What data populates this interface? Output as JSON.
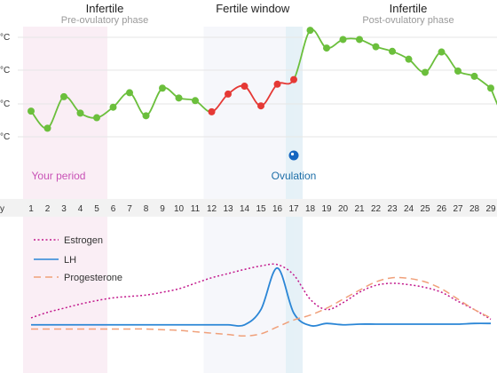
{
  "chart_data": [
    {
      "type": "line",
      "phases": [
        {
          "title": "Infertile",
          "subtitle": "Pre-ovulatory phase",
          "title_color": "#222222"
        },
        {
          "title": "Fertile window",
          "subtitle": "",
          "title_color": "#e53935"
        },
        {
          "title": "Infertile",
          "subtitle": "Post-ovulatory phase",
          "title_color": "#222222"
        }
      ],
      "y_tick_labels": [
        "°C",
        "°C",
        "°C",
        "°C"
      ],
      "x_axis_label": "y",
      "annotations": {
        "period": "Your period",
        "ovulation": "Ovulation"
      },
      "days": [
        1,
        2,
        3,
        4,
        5,
        6,
        7,
        8,
        9,
        10,
        11,
        12,
        13,
        14,
        15,
        16,
        17,
        18,
        19,
        20,
        21,
        22,
        23,
        24,
        25,
        26,
        27,
        28,
        29
      ],
      "temperature_points": [
        {
          "day": 1,
          "level": 0.39,
          "fertile": false
        },
        {
          "day": 2,
          "level": 0.13,
          "fertile": false
        },
        {
          "day": 3,
          "level": 0.61,
          "fertile": false
        },
        {
          "day": 4,
          "level": 0.36,
          "fertile": false
        },
        {
          "day": 5,
          "level": 0.29,
          "fertile": false
        },
        {
          "day": 6,
          "level": 0.45,
          "fertile": false
        },
        {
          "day": 7,
          "level": 0.67,
          "fertile": false
        },
        {
          "day": 8,
          "level": 0.32,
          "fertile": false
        },
        {
          "day": 9,
          "level": 0.74,
          "fertile": false
        },
        {
          "day": 10,
          "level": 0.59,
          "fertile": false
        },
        {
          "day": 11,
          "level": 0.55,
          "fertile": false
        },
        {
          "day": 12,
          "level": 0.38,
          "fertile": true
        },
        {
          "day": 13,
          "level": 0.65,
          "fertile": true
        },
        {
          "day": 14,
          "level": 0.77,
          "fertile": true
        },
        {
          "day": 15,
          "level": 0.47,
          "fertile": true
        },
        {
          "day": 16,
          "level": 0.8,
          "fertile": true
        },
        {
          "day": 17,
          "level": 0.87,
          "fertile": true
        },
        {
          "day": 18,
          "level": 1.62,
          "fertile": false
        },
        {
          "day": 19,
          "level": 1.35,
          "fertile": false
        },
        {
          "day": 20,
          "level": 1.48,
          "fertile": false
        },
        {
          "day": 21,
          "level": 1.48,
          "fertile": false
        },
        {
          "day": 22,
          "level": 1.37,
          "fertile": false
        },
        {
          "day": 23,
          "level": 1.3,
          "fertile": false
        },
        {
          "day": 24,
          "level": 1.18,
          "fertile": false
        },
        {
          "day": 25,
          "level": 0.98,
          "fertile": false
        },
        {
          "day": 26,
          "level": 1.29,
          "fertile": false
        },
        {
          "day": 27,
          "level": 1.0,
          "fertile": false
        },
        {
          "day": 28,
          "level": 0.92,
          "fertile": false
        },
        {
          "day": 29,
          "level": 0.74,
          "fertile": false
        }
      ],
      "period_days": [
        1,
        5
      ],
      "fertile_window_days": [
        12,
        17
      ],
      "ovulation_day": 17,
      "colors": {
        "normal": "#6bbf3c",
        "fertile": "#e53935",
        "period_band": "#f8e8f1",
        "fertile_band": "#eef0f8",
        "ovulation_band": "#e3eff6",
        "ovulation_dot": "#1565c0",
        "period_text": "#c852b6",
        "ovulation_text": "#1e6fa8"
      }
    },
    {
      "type": "line",
      "legend_position": "top-left",
      "series": [
        {
          "name": "Estrogen",
          "color": "#c2188c",
          "style": "dotted",
          "values": [
            0.18,
            0.26,
            0.32,
            0.38,
            0.43,
            0.47,
            0.49,
            0.51,
            0.55,
            0.6,
            0.68,
            0.76,
            0.82,
            0.88,
            0.93,
            0.95,
            0.8,
            0.45,
            0.3,
            0.4,
            0.55,
            0.65,
            0.68,
            0.66,
            0.62,
            0.55,
            0.42,
            0.3,
            0.16
          ]
        },
        {
          "name": "LH",
          "color": "#2b86d6",
          "style": "solid",
          "values": [
            0.08,
            0.08,
            0.08,
            0.08,
            0.08,
            0.08,
            0.08,
            0.08,
            0.08,
            0.08,
            0.08,
            0.08,
            0.08,
            0.08,
            0.3,
            0.9,
            0.25,
            0.07,
            0.1,
            0.08,
            0.09,
            0.09,
            0.09,
            0.09,
            0.09,
            0.09,
            0.09,
            0.1,
            0.1
          ]
        },
        {
          "name": "Progesterone",
          "color": "#f0a07a",
          "style": "dashed",
          "values": [
            0.02,
            0.02,
            0.02,
            0.02,
            0.02,
            0.02,
            0.02,
            0.02,
            0.01,
            0.0,
            -0.02,
            -0.04,
            -0.06,
            -0.08,
            -0.05,
            0.05,
            0.15,
            0.22,
            0.32,
            0.45,
            0.58,
            0.7,
            0.76,
            0.75,
            0.7,
            0.6,
            0.45,
            0.3,
            0.18
          ]
        }
      ]
    }
  ]
}
